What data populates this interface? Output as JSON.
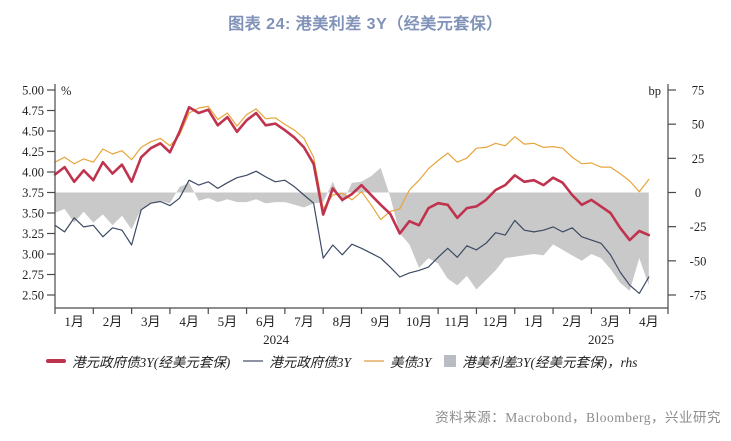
{
  "title": "图表 24: 港美利差 3Y（经美元套保）",
  "source": "资料来源：Macrobond，Bloomberg，兴业研究",
  "colors": {
    "title": "#8092b8",
    "hedged_line": "#c0334e",
    "hkd_line": "#3c4a63",
    "ust_line": "#e7a53c",
    "spread_fill": "#c9c9c9",
    "axis": "#4a4a4a",
    "tick_text": "#1f1f1f",
    "source_text": "#8c8c8c"
  },
  "legend": {
    "items": [
      {
        "label": "港元政府债3Y(经美元套保)",
        "marker": "line-thick",
        "color": "#c0334e"
      },
      {
        "label": "港元政府债3Y",
        "marker": "line-thin",
        "color": "#8d93a0"
      },
      {
        "label": "美债3Y",
        "marker": "line-thin",
        "color": "#ecc28a"
      },
      {
        "label": "港美利差3Y(经美元套保)，rhs",
        "marker": "square",
        "color": "#b9bdc3"
      }
    ]
  },
  "chart_data": {
    "type": "line",
    "points_per_month": 4,
    "x_months": [
      "1月",
      "2月",
      "3月",
      "4月",
      "5月",
      "6月",
      "7月",
      "8月",
      "9月",
      "10月",
      "11月",
      "12月",
      "1月",
      "2月",
      "3月",
      "4月"
    ],
    "year_labels": [
      {
        "text": "2024",
        "month_index": 5.77
      },
      {
        "text": "2025",
        "month_index": 14.25
      }
    ],
    "left_axis": {
      "label": "%",
      "min": 2.5,
      "max": 5.0,
      "ticks": [
        5.0,
        4.75,
        4.5,
        4.25,
        4.0,
        3.75,
        3.5,
        3.25,
        3.0,
        2.75,
        2.5
      ],
      "tick_labels": [
        "5.00",
        "4.75",
        "4.50",
        "4.25",
        "4.00",
        "3.75",
        "3.50",
        "3.25",
        "3.00",
        "2.75",
        "2.50"
      ]
    },
    "right_axis": {
      "label": "bp",
      "min": -75,
      "max": 75,
      "ticks": [
        75,
        50,
        25,
        0,
        -25,
        -50,
        -75
      ],
      "tick_labels": [
        "75",
        "50",
        "25",
        "0",
        "-25",
        "-50",
        "-75"
      ]
    },
    "series": [
      {
        "name": "港元政府债3Y(经美元套保)",
        "axis": "left",
        "color": "#c0334e",
        "width": 2.6,
        "values": [
          3.97,
          4.06,
          3.88,
          4.02,
          3.9,
          4.12,
          3.98,
          4.09,
          3.88,
          4.18,
          4.29,
          4.35,
          4.24,
          4.49,
          4.79,
          4.72,
          4.76,
          4.57,
          4.67,
          4.49,
          4.63,
          4.72,
          4.57,
          4.59,
          4.51,
          4.42,
          4.3,
          4.1,
          3.48,
          3.8,
          3.66,
          3.73,
          3.84,
          3.72,
          3.6,
          3.49,
          3.25,
          3.4,
          3.35,
          3.56,
          3.62,
          3.6,
          3.44,
          3.56,
          3.58,
          3.66,
          3.78,
          3.84,
          3.96,
          3.88,
          3.9,
          3.84,
          3.93,
          3.87,
          3.72,
          3.6,
          3.66,
          3.58,
          3.5,
          3.32,
          3.17,
          3.28,
          3.23
        ]
      },
      {
        "name": "港元政府债3Y",
        "axis": "left",
        "color": "#3c4a63",
        "width": 1.2,
        "values": [
          3.35,
          3.27,
          3.44,
          3.33,
          3.35,
          3.21,
          3.32,
          3.29,
          3.11,
          3.54,
          3.62,
          3.64,
          3.59,
          3.68,
          3.9,
          3.84,
          3.88,
          3.8,
          3.87,
          3.93,
          3.96,
          4.01,
          3.94,
          3.88,
          3.9,
          3.82,
          3.72,
          3.62,
          2.95,
          3.11,
          2.99,
          3.12,
          3.07,
          3.01,
          2.95,
          2.84,
          2.72,
          2.77,
          2.8,
          2.84,
          2.96,
          3.07,
          2.96,
          3.1,
          3.05,
          3.13,
          3.26,
          3.23,
          3.41,
          3.29,
          3.27,
          3.29,
          3.33,
          3.27,
          3.32,
          3.21,
          3.17,
          3.13,
          2.99,
          2.78,
          2.62,
          2.52,
          2.72
        ]
      },
      {
        "name": "美债3Y",
        "axis": "left",
        "color": "#e7a53c",
        "width": 1.2,
        "values": [
          4.12,
          4.18,
          4.1,
          4.16,
          4.12,
          4.28,
          4.22,
          4.26,
          4.15,
          4.3,
          4.37,
          4.41,
          4.32,
          4.45,
          4.72,
          4.78,
          4.8,
          4.64,
          4.72,
          4.56,
          4.7,
          4.77,
          4.65,
          4.66,
          4.58,
          4.51,
          4.41,
          4.18,
          3.55,
          3.72,
          3.74,
          3.66,
          3.76,
          3.6,
          3.42,
          3.52,
          3.55,
          3.78,
          3.9,
          4.04,
          4.14,
          4.23,
          4.12,
          4.17,
          4.29,
          4.3,
          4.35,
          4.32,
          4.43,
          4.34,
          4.35,
          4.3,
          4.31,
          4.29,
          4.18,
          4.1,
          4.11,
          4.06,
          4.06,
          3.98,
          3.89,
          3.76,
          3.91
        ]
      }
    ],
    "area_series": {
      "name": "港美利差3Y(经美元套保)，rhs",
      "axis": "right",
      "color": "#c9c9c9",
      "values": [
        -15,
        -12,
        -22,
        -14,
        -22,
        -16,
        -24,
        -17,
        -27,
        -12,
        -8,
        -6,
        -8,
        4,
        7,
        -6,
        -4,
        -7,
        -5,
        -7,
        -7,
        -5,
        -8,
        -7,
        -7,
        -9,
        -11,
        -8,
        -7,
        8,
        -8,
        7,
        8,
        12,
        18,
        -3,
        -30,
        -38,
        -55,
        -48,
        -52,
        -63,
        -68,
        -61,
        -71,
        -64,
        -57,
        -48,
        -47,
        -46,
        -45,
        -46,
        -38,
        -42,
        -46,
        -50,
        -45,
        -48,
        -56,
        -66,
        -72,
        -48,
        -68
      ]
    }
  }
}
